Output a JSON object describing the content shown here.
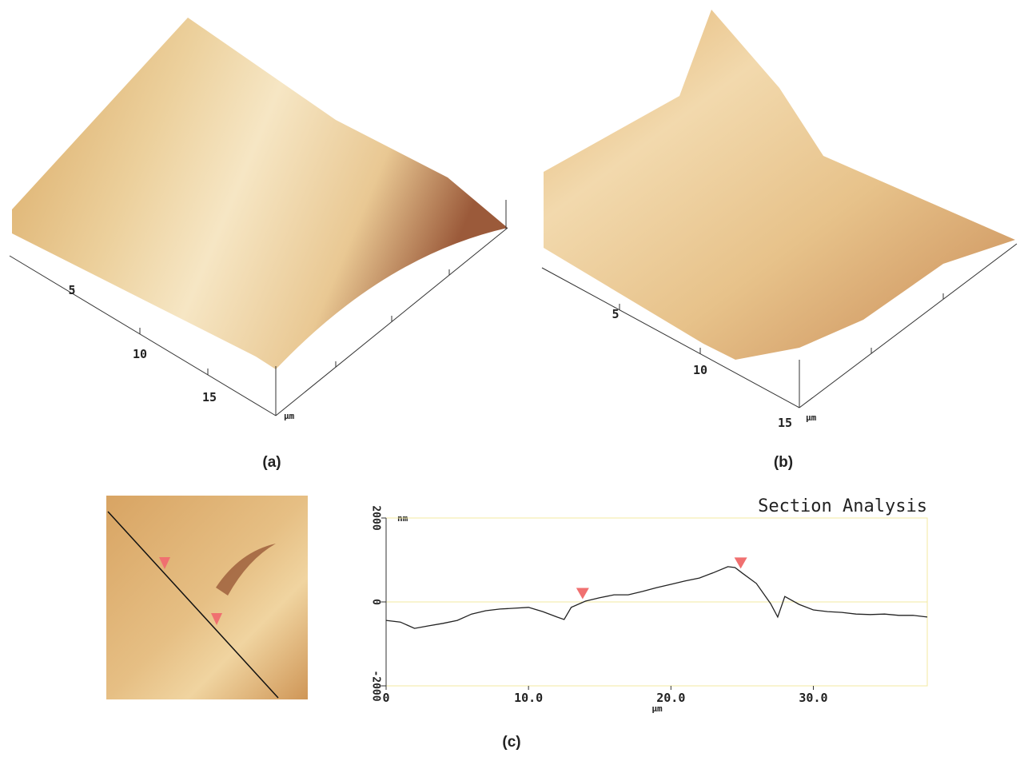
{
  "panels": {
    "a": {
      "caption": "(a)",
      "axis_labels": [
        "5",
        "10",
        "15"
      ],
      "unit": "μm"
    },
    "b": {
      "caption": "(b)",
      "axis_labels": [
        "5",
        "10",
        "15"
      ],
      "unit": "μm"
    },
    "c": {
      "caption": "(c)"
    }
  },
  "chart_data": {
    "type": "line",
    "title": "Section Analysis",
    "y_unit": "nm",
    "x_label": "μm",
    "x": [
      0,
      1,
      2,
      3,
      4,
      5,
      6,
      7,
      8,
      9,
      10,
      11,
      12,
      12.5,
      13,
      14,
      15,
      16,
      17,
      18,
      19,
      20,
      21,
      22,
      23,
      24,
      24.5,
      25,
      26,
      27,
      27.5,
      28,
      29,
      30,
      31,
      32,
      33,
      34,
      35,
      36,
      37,
      38
    ],
    "series": [
      {
        "color": "#222222",
        "values": [
          -440,
          -480,
          -630,
          -570,
          -510,
          -440,
          -290,
          -210,
          -170,
          -150,
          -130,
          -230,
          -360,
          -420,
          -130,
          20,
          100,
          170,
          170,
          250,
          340,
          420,
          500,
          570,
          700,
          840,
          820,
          690,
          440,
          -40,
          -360,
          130,
          -60,
          -190,
          -230,
          -250,
          -290,
          -300,
          -290,
          -320,
          -320,
          -360
        ]
      }
    ],
    "cursor_x": [
      13.8,
      24.9
    ],
    "cursor_color": "#f07070",
    "xlim": [
      0,
      38
    ],
    "ylim": [
      -2000,
      2000
    ],
    "xticks": [
      0,
      {
        "value": 10,
        "label": "10.0"
      },
      {
        "value": 20,
        "label": "20.0"
      },
      {
        "value": 30,
        "label": "30.0"
      }
    ],
    "yticks": [
      2000,
      0,
      -2000
    ],
    "grid": true
  }
}
